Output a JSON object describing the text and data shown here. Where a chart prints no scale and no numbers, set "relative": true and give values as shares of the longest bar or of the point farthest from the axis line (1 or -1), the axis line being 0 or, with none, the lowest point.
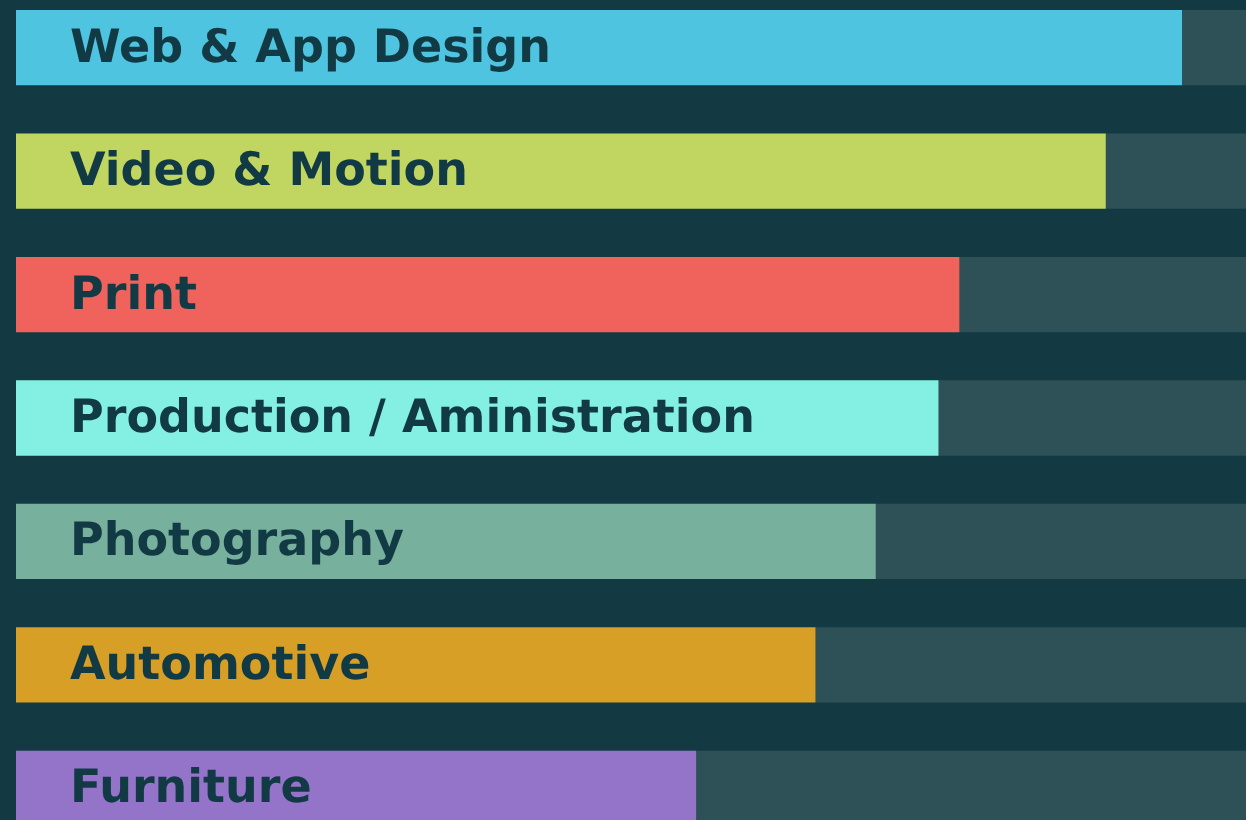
{
  "chart_data": {
    "type": "bar",
    "orientation": "horizontal",
    "relative": true,
    "stacked": true,
    "categories": [
      "Web & App Design",
      "Video & Motion",
      "Print",
      "Production / Aministration",
      "Photography",
      "Automotive",
      "Furniture"
    ],
    "series": [
      {
        "colors": [
          "#4fc4e0",
          "#c0d661",
          "#ef635c",
          "#84f0e4",
          "#77b09c",
          "#d89f26",
          "#9474c9"
        ],
        "values": [
          0.948,
          0.886,
          0.767,
          0.75,
          0.699,
          0.65,
          0.553
        ]
      },
      {
        "color": "#2e5157",
        "values": [
          0.052,
          0.114,
          0.233,
          0.25,
          0.301,
          0.35,
          0.447
        ]
      }
    ],
    "legend": false
  }
}
